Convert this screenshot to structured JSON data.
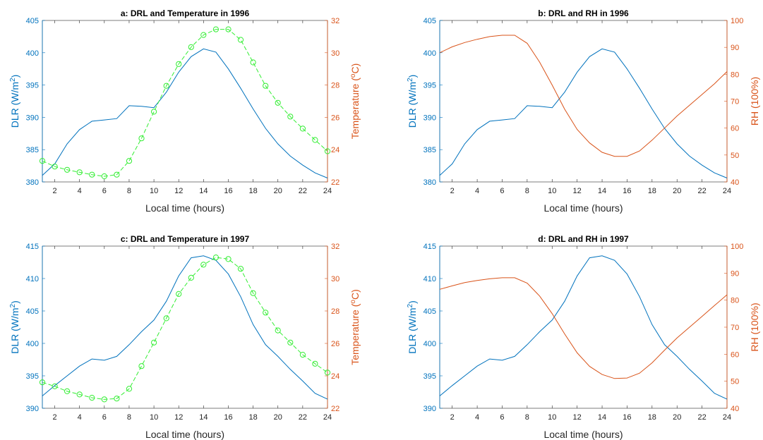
{
  "colors": {
    "dlr": "#0072bd",
    "right": "#d95319",
    "temp": "#33ee33",
    "axis": "#262626"
  },
  "chart_data": [
    {
      "id": "a",
      "type": "line",
      "title": "a: DRL and Temperature in 1996",
      "xlabel": "Local time (hours)",
      "ylabel_left": "DLR (W/m2)",
      "ylabel_right": "Temperature (°C)",
      "xlim": [
        1,
        24
      ],
      "ylim_left": [
        380,
        405
      ],
      "ylim_right": [
        22,
        32
      ],
      "x_ticks": [
        2,
        4,
        6,
        8,
        10,
        12,
        14,
        16,
        18,
        20,
        22,
        24
      ],
      "y_left_ticks": [
        380,
        385,
        390,
        395,
        400,
        405
      ],
      "y_right_ticks": [
        22,
        24,
        26,
        28,
        30,
        32
      ],
      "x": [
        1,
        2,
        3,
        4,
        5,
        6,
        7,
        8,
        9,
        10,
        11,
        12,
        13,
        14,
        15,
        16,
        17,
        18,
        19,
        20,
        21,
        22,
        23,
        24
      ],
      "series": [
        {
          "axis": "left",
          "style": "solid",
          "values": [
            381.0,
            382.8,
            385.9,
            388.1,
            389.4,
            389.6,
            389.8,
            391.8,
            391.7,
            391.5,
            393.9,
            397.0,
            399.4,
            400.6,
            400.1,
            397.5,
            394.5,
            391.3,
            388.3,
            385.9,
            384.0,
            382.6,
            381.4,
            380.6
          ]
        },
        {
          "axis": "right",
          "style": "dashed-circle",
          "values": [
            23.3,
            22.95,
            22.75,
            22.6,
            22.45,
            22.35,
            22.45,
            23.3,
            24.7,
            26.35,
            27.95,
            29.3,
            30.35,
            31.1,
            31.45,
            31.45,
            30.8,
            29.4,
            27.95,
            26.9,
            26.05,
            25.3,
            24.6,
            23.9
          ]
        }
      ]
    },
    {
      "id": "b",
      "type": "line",
      "title": "b: DRL and RH in 1996",
      "xlabel": "Local time (hours)",
      "ylabel_left": "DLR (W/m2)",
      "ylabel_right": "RH (100%)",
      "xlim": [
        1,
        24
      ],
      "ylim_left": [
        380,
        405
      ],
      "ylim_right": [
        40,
        100
      ],
      "x_ticks": [
        2,
        4,
        6,
        8,
        10,
        12,
        14,
        16,
        18,
        20,
        22,
        24
      ],
      "y_left_ticks": [
        380,
        385,
        390,
        395,
        400,
        405
      ],
      "y_right_ticks": [
        40,
        50,
        60,
        70,
        80,
        90,
        100
      ],
      "x": [
        1,
        2,
        3,
        4,
        5,
        6,
        7,
        8,
        9,
        10,
        11,
        12,
        13,
        14,
        15,
        16,
        17,
        18,
        19,
        20,
        21,
        22,
        23,
        24
      ],
      "series": [
        {
          "axis": "left",
          "style": "solid",
          "values": [
            381.0,
            382.8,
            385.9,
            388.1,
            389.4,
            389.6,
            389.8,
            391.8,
            391.7,
            391.5,
            393.9,
            397.0,
            399.4,
            400.6,
            400.1,
            397.5,
            394.5,
            391.3,
            388.3,
            385.9,
            384.0,
            382.6,
            381.4,
            380.6
          ]
        },
        {
          "axis": "right",
          "style": "solid",
          "values": [
            88,
            90.2,
            91.8,
            93,
            94,
            94.5,
            94.5,
            91.5,
            84.5,
            76,
            67,
            59.5,
            54.5,
            51,
            49.5,
            49.5,
            51.5,
            55.5,
            60,
            64.5,
            68.5,
            72.5,
            76.5,
            81
          ]
        }
      ]
    },
    {
      "id": "c",
      "type": "line",
      "title": "c: DRL and Temperature in 1997",
      "xlabel": "Local time (hours)",
      "ylabel_left": "DLR (W/m2)",
      "ylabel_right": "Temperature (°C)",
      "xlim": [
        1,
        24
      ],
      "ylim_left": [
        390,
        415
      ],
      "ylim_right": [
        22,
        32
      ],
      "x_ticks": [
        2,
        4,
        6,
        8,
        10,
        12,
        14,
        16,
        18,
        20,
        22,
        24
      ],
      "y_left_ticks": [
        390,
        395,
        400,
        405,
        410,
        415
      ],
      "y_right_ticks": [
        22,
        24,
        26,
        28,
        30,
        32
      ],
      "x": [
        1,
        2,
        3,
        4,
        5,
        6,
        7,
        8,
        9,
        10,
        11,
        12,
        13,
        14,
        15,
        16,
        17,
        18,
        19,
        20,
        21,
        22,
        23,
        24
      ],
      "series": [
        {
          "axis": "left",
          "style": "solid",
          "values": [
            391.9,
            393.5,
            395.0,
            396.5,
            397.6,
            397.4,
            398.0,
            399.8,
            401.8,
            403.6,
            406.5,
            410.4,
            413.2,
            413.5,
            412.8,
            410.7,
            407.2,
            402.9,
            399.8,
            398.0,
            396.0,
            394.2,
            392.3,
            391.4
          ]
        },
        {
          "axis": "right",
          "style": "dashed-circle",
          "values": [
            23.6,
            23.35,
            23.05,
            22.85,
            22.65,
            22.55,
            22.6,
            23.2,
            24.6,
            26.05,
            27.55,
            29.05,
            30.05,
            30.85,
            31.3,
            31.2,
            30.6,
            29.1,
            27.9,
            26.8,
            26.05,
            25.3,
            24.75,
            24.2
          ]
        }
      ]
    },
    {
      "id": "d",
      "type": "line",
      "title": "d: DRL and RH in 1997",
      "xlabel": "Local time (hours)",
      "ylabel_left": "DLR (W/m2)",
      "ylabel_right": "RH (100%)",
      "xlim": [
        1,
        24
      ],
      "ylim_left": [
        390,
        415
      ],
      "ylim_right": [
        40,
        100
      ],
      "x_ticks": [
        2,
        4,
        6,
        8,
        10,
        12,
        14,
        16,
        18,
        20,
        22,
        24
      ],
      "y_left_ticks": [
        390,
        395,
        400,
        405,
        410,
        415
      ],
      "y_right_ticks": [
        40,
        50,
        60,
        70,
        80,
        90,
        100
      ],
      "x": [
        1,
        2,
        3,
        4,
        5,
        6,
        7,
        8,
        9,
        10,
        11,
        12,
        13,
        14,
        15,
        16,
        17,
        18,
        19,
        20,
        21,
        22,
        23,
        24
      ],
      "series": [
        {
          "axis": "left",
          "style": "solid",
          "values": [
            391.9,
            393.5,
            395.0,
            396.5,
            397.6,
            397.4,
            398.0,
            399.8,
            401.8,
            403.6,
            406.5,
            410.4,
            413.2,
            413.5,
            412.8,
            410.7,
            407.2,
            402.9,
            399.8,
            398.0,
            396.0,
            394.2,
            392.3,
            391.4
          ]
        },
        {
          "axis": "right",
          "style": "solid",
          "values": [
            84,
            85.3,
            86.5,
            87.3,
            87.9,
            88.3,
            88.3,
            86.3,
            81.5,
            75,
            67.5,
            60.5,
            55.5,
            52.5,
            51,
            51.2,
            53,
            56.8,
            61.5,
            66,
            70,
            74,
            78,
            82
          ]
        }
      ]
    }
  ]
}
